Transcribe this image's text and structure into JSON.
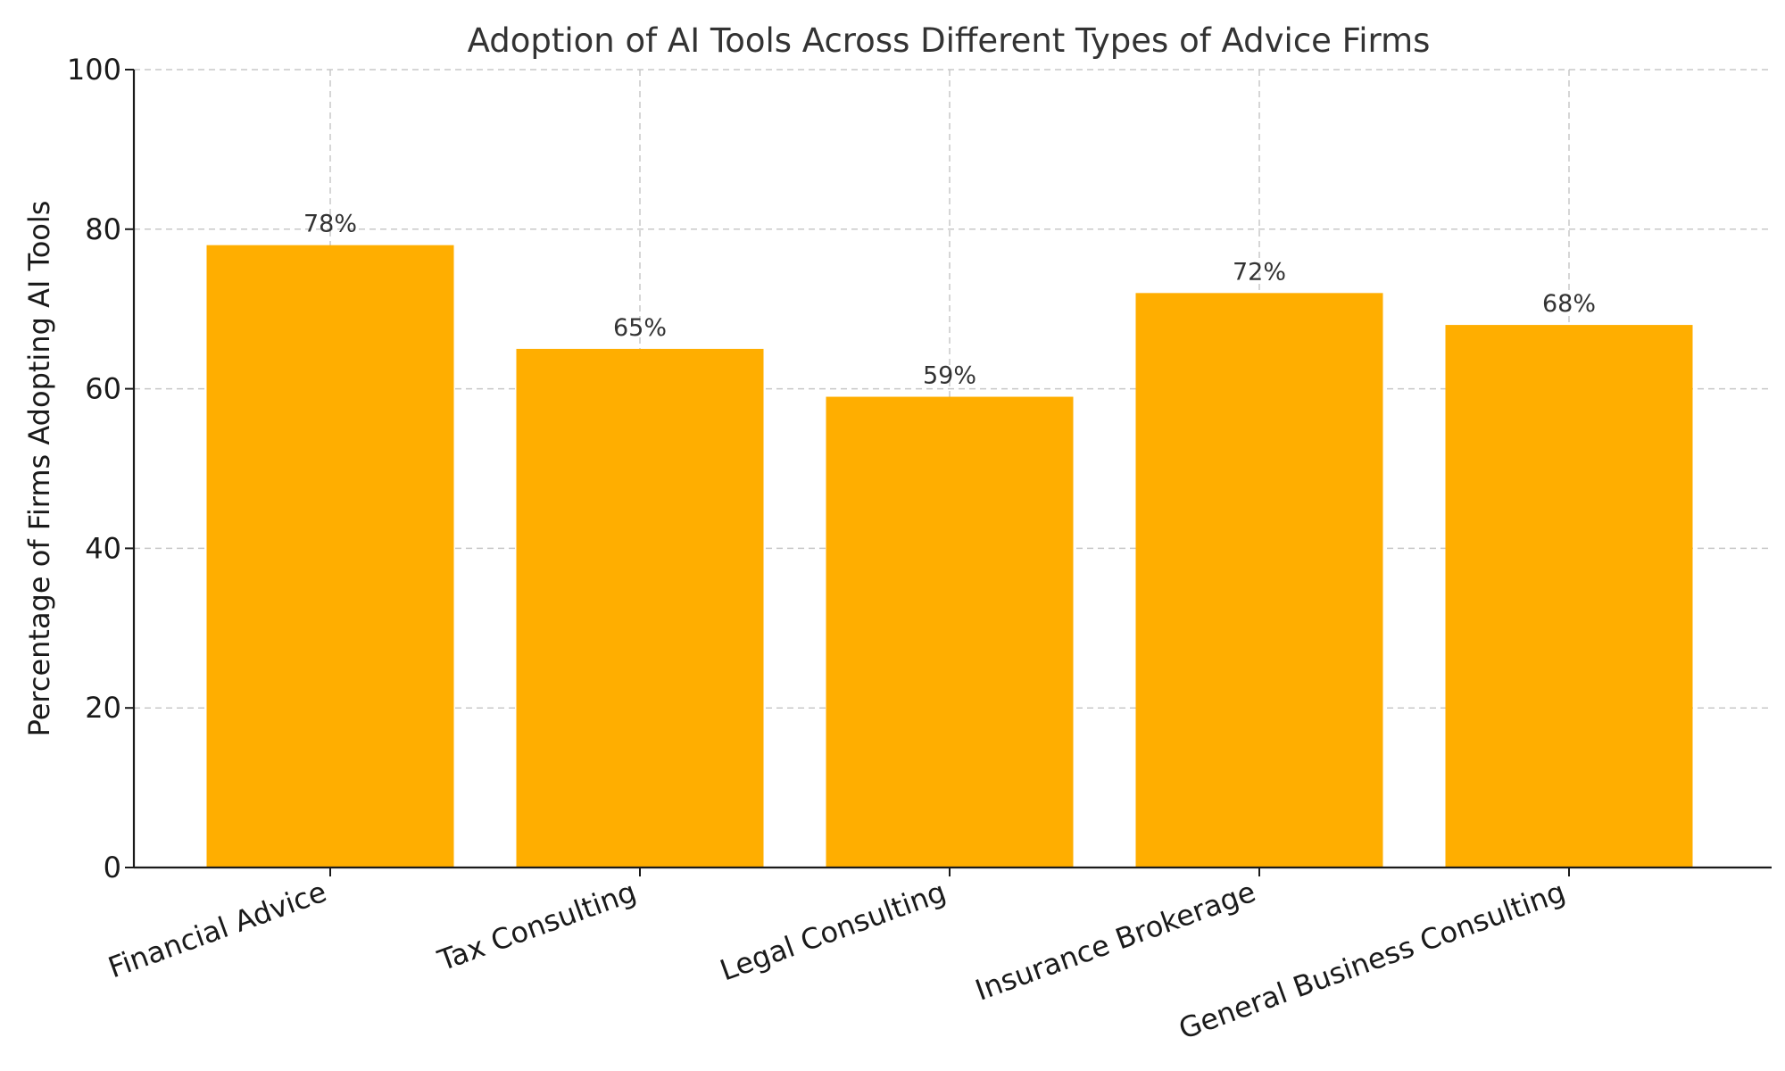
{
  "chart_data": {
    "type": "bar",
    "title": "Adoption of AI Tools Across Different Types of Advice Firms",
    "xlabel": "",
    "ylabel": "Percentage of Firms Adopting AI Tools",
    "categories": [
      "Financial Advice",
      "Tax Consulting",
      "Legal Consulting",
      "Insurance Brokerage",
      "General Business Consulting"
    ],
    "values": [
      78,
      65,
      59,
      72,
      68
    ],
    "data_labels": [
      "78%",
      "65%",
      "59%",
      "72%",
      "68%"
    ],
    "ylim": [
      0,
      100
    ],
    "yticks": [
      0,
      20,
      40,
      60,
      80,
      100
    ],
    "grid": true,
    "bar_color": "#FFAE00"
  }
}
